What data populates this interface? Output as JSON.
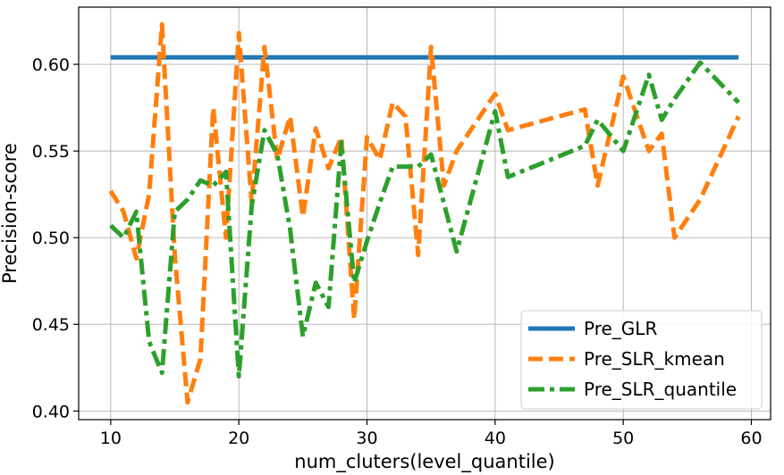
{
  "chart_data": {
    "type": "line",
    "title": "",
    "xlabel": "num_cluters(level_quantile)",
    "ylabel": "Precision-score",
    "xlim": [
      7.5,
      61.5
    ],
    "ylim": [
      0.395,
      0.633
    ],
    "x_ticks": [
      10,
      20,
      30,
      40,
      50,
      60
    ],
    "y_ticks": [
      0.4,
      0.45,
      0.5,
      0.55,
      0.6
    ],
    "x_tick_labels": [
      "10",
      "20",
      "30",
      "40",
      "50",
      "60"
    ],
    "y_tick_labels": [
      "0.40",
      "0.45",
      "0.50",
      "0.55",
      "0.60"
    ],
    "grid": true,
    "legend_position": "bottom-right",
    "series": [
      {
        "name": "Pre_GLR",
        "color": "#1f77b4",
        "style": "solid",
        "x": [
          10,
          59
        ],
        "y": [
          0.604,
          0.604
        ]
      },
      {
        "name": "Pre_SLR_kmean",
        "color": "#ff7f0e",
        "style": "dashed",
        "x": [
          10,
          11,
          12,
          13,
          14,
          15,
          16,
          17,
          18,
          19,
          20,
          21,
          22,
          23,
          24,
          25,
          26,
          27,
          28,
          29,
          30,
          31,
          32,
          33,
          34,
          35,
          36,
          37,
          40,
          41,
          47,
          48,
          50,
          52,
          53,
          54,
          56,
          59
        ],
        "y": [
          0.527,
          0.515,
          0.488,
          0.525,
          0.623,
          0.49,
          0.405,
          0.43,
          0.575,
          0.5,
          0.618,
          0.52,
          0.61,
          0.545,
          0.57,
          0.512,
          0.563,
          0.54,
          0.558,
          0.453,
          0.558,
          0.545,
          0.578,
          0.57,
          0.49,
          0.61,
          0.53,
          0.55,
          0.583,
          0.562,
          0.574,
          0.53,
          0.593,
          0.55,
          0.56,
          0.5,
          0.522,
          0.57
        ]
      },
      {
        "name": "Pre_SLR_quantile",
        "color": "#2ca02c",
        "style": "dashdot",
        "x": [
          10,
          11,
          12,
          13,
          14,
          15,
          16,
          17,
          18,
          19,
          20,
          21,
          22,
          23,
          24,
          25,
          26,
          27,
          28,
          29,
          30,
          31,
          32,
          33,
          34,
          35,
          36,
          37,
          40,
          41,
          47,
          48,
          50,
          52,
          53,
          54,
          56,
          59
        ],
        "y": [
          0.507,
          0.5,
          0.515,
          0.44,
          0.422,
          0.515,
          0.522,
          0.533,
          0.53,
          0.538,
          0.42,
          0.518,
          0.562,
          0.548,
          0.505,
          0.443,
          0.474,
          0.46,
          0.555,
          0.474,
          0.498,
          0.52,
          0.541,
          0.541,
          0.541,
          0.548,
          0.52,
          0.492,
          0.573,
          0.535,
          0.553,
          0.568,
          0.55,
          0.594,
          0.568,
          0.58,
          0.601,
          0.578
        ]
      }
    ]
  }
}
